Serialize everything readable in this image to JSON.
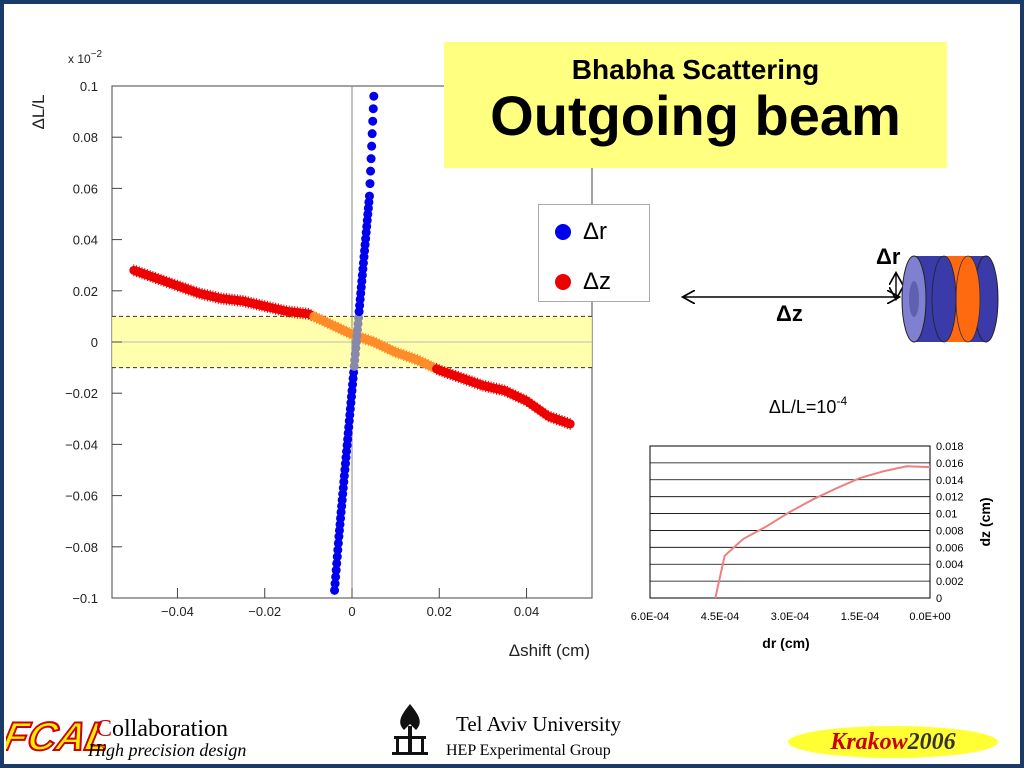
{
  "title": {
    "subtitle": "Bhabha Scattering",
    "main": "Outgoing beam"
  },
  "legend": [
    {
      "label": "Δr",
      "color": "#0000ee"
    },
    {
      "label": "Δz",
      "color": "#ee0000"
    }
  ],
  "diagram": {
    "dr_label": "Δr",
    "dz_label": "Δz"
  },
  "chart_data": [
    {
      "type": "scatter",
      "title": "",
      "xlabel": "Δshift (cm)",
      "ylabel": "ΔL/L",
      "y_multiplier": "x 10",
      "y_multiplier_exp": "−2",
      "xlim": [
        -0.055,
        0.055
      ],
      "ylim": [
        -0.1,
        0.1
      ],
      "x_ticks": [
        "−0.04",
        "−0.02",
        "0",
        "0.02",
        "0.04"
      ],
      "y_ticks": [
        "0.1",
        "0.08",
        "0.06",
        "0.04",
        "0.02",
        "0",
        "−0.02",
        "−0.04",
        "−0.06",
        "−0.08",
        "−0.1"
      ],
      "band": [
        -0.01,
        0.01
      ],
      "series": [
        {
          "name": "Δr",
          "x": [
            -0.004,
            -0.003,
            -0.002,
            -0.001,
            0,
            0.001,
            0.002,
            0.003,
            0.004,
            0.005
          ],
          "y": [
            -0.097,
            -0.076,
            -0.057,
            -0.038,
            -0.019,
            0.0,
            0.019,
            0.038,
            0.057,
            0.096
          ]
        },
        {
          "name": "Δz",
          "x": [
            -0.05,
            -0.045,
            -0.04,
            -0.035,
            -0.03,
            -0.025,
            -0.02,
            -0.015,
            -0.01,
            -0.005,
            0,
            0.005,
            0.01,
            0.015,
            0.02,
            0.025,
            0.03,
            0.035,
            0.04,
            0.045,
            0.05
          ],
          "y": [
            0.028,
            0.025,
            0.022,
            0.019,
            0.017,
            0.016,
            0.014,
            0.012,
            0.011,
            0.007,
            0.003,
            0.0,
            -0.004,
            -0.007,
            -0.011,
            -0.014,
            -0.017,
            -0.019,
            -0.023,
            -0.029,
            -0.032
          ]
        }
      ]
    },
    {
      "type": "line",
      "title": "ΔL/L=10",
      "title_exp": "-4",
      "xlabel": "dr (cm)",
      "ylabel": "dz (cm)",
      "x_ticks": [
        "6.0E-04",
        "4.5E-04",
        "3.0E-04",
        "1.5E-04",
        "0.0E+00"
      ],
      "y_ticks": [
        "0.018",
        "0.016",
        "0.014",
        "0.012",
        "0.01",
        "0.008",
        "0.006",
        "0.004",
        "0.002",
        "0"
      ],
      "xlim": [
        0.0006,
        0.0
      ],
      "ylim": [
        0,
        0.018
      ],
      "series": [
        {
          "x": [
            0.00046,
            0.00044,
            0.00042,
            0.0004,
            0.00035,
            0.0003,
            0.00025,
            0.0002,
            0.00015,
            0.0001,
            5e-05,
            0.0
          ],
          "y": [
            0.0,
            0.005,
            0.006,
            0.007,
            0.0085,
            0.0102,
            0.0117,
            0.013,
            0.0142,
            0.015,
            0.0156,
            0.0155
          ]
        }
      ]
    }
  ],
  "footer": {
    "logo": "FCAL",
    "collab_c": "C",
    "collab_rest": "ollaboration",
    "collab_sub": "High precision design",
    "university": "Tel Aviv University",
    "group": "HEP Experimental Group",
    "city": "Krakow",
    "year": "2006"
  },
  "colors": {
    "frame": "#1a3a6a",
    "title_bg": "#ffff80",
    "red": "#ee0000",
    "blue": "#0000ee",
    "orange": "#ff8c28"
  }
}
